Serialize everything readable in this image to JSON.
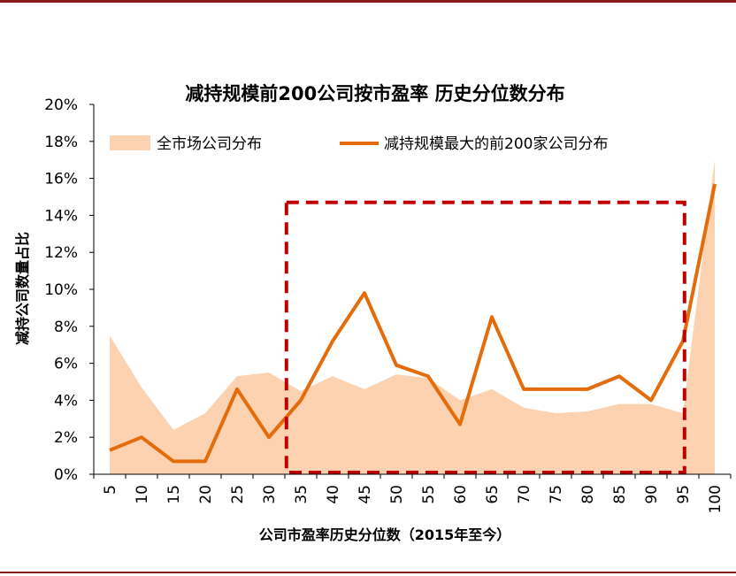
{
  "colors": {
    "area": "#fcd2b0",
    "line": "#e46c0a",
    "highlight": "#c00000",
    "rule": "#8b1a1a"
  },
  "chart_data": {
    "type": "area+line",
    "title": "减持规模前200公司按市盈率 历史分位数分布",
    "xlabel": "公司市盈率历史分位数（2015年至今）",
    "ylabel": "减持公司数量占比",
    "categories": [
      "5",
      "10",
      "15",
      "20",
      "25",
      "30",
      "35",
      "40",
      "45",
      "50",
      "55",
      "60",
      "65",
      "70",
      "75",
      "80",
      "85",
      "90",
      "95",
      "100"
    ],
    "ylim": [
      0,
      20
    ],
    "yticks": [
      "0%",
      "2%",
      "4%",
      "6%",
      "8%",
      "10%",
      "12%",
      "14%",
      "16%",
      "18%",
      "20%"
    ],
    "legend_position": "top",
    "series": [
      {
        "name": "全市场公司分布",
        "kind": "area",
        "values": [
          7.5,
          4.7,
          2.4,
          3.3,
          5.3,
          5.5,
          4.5,
          5.3,
          4.6,
          5.4,
          5.2,
          4.0,
          4.6,
          3.6,
          3.3,
          3.4,
          3.8,
          3.8,
          3.3,
          17.0
        ]
      },
      {
        "name": "减持规模最大的前200家公司分布",
        "kind": "line",
        "values": [
          1.3,
          2.0,
          0.7,
          0.7,
          4.6,
          2.0,
          4.0,
          7.2,
          9.8,
          5.9,
          5.3,
          2.7,
          8.5,
          4.6,
          4.6,
          4.6,
          5.3,
          4.0,
          7.2,
          15.7
        ]
      }
    ],
    "annotation": {
      "type": "dashed-box",
      "from_category": "35",
      "to_category": "95",
      "y_range": [
        0,
        14.7
      ]
    }
  }
}
